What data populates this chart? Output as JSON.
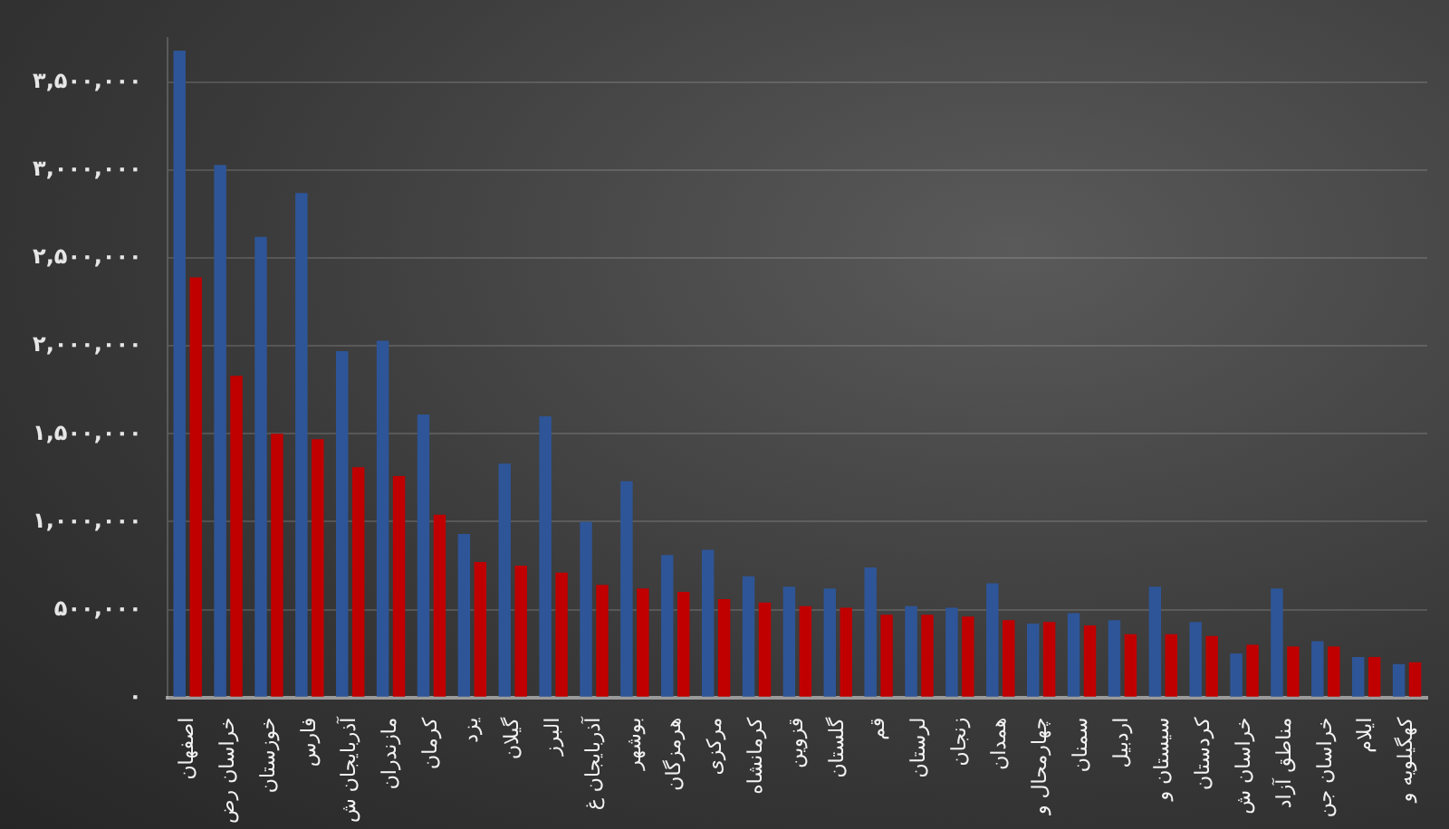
{
  "chart_data": {
    "type": "bar",
    "categories": [
      "اصفهان",
      "خراسان رض",
      "خوزستان",
      "فارس",
      "آذربایجان ش",
      "مازندران",
      "کرمان",
      "یزد",
      "گیلان",
      "البرز",
      "آذربایجان غ",
      "بوشهر",
      "هرمزگان",
      "مرکزی",
      "کرمانشاه",
      "قزوین",
      "گلستان",
      "قم",
      "لرستان",
      "زنجان",
      "همدان",
      "چهارمحال و",
      "سمنان",
      "اردبیل",
      "سیستان و",
      "کردستان",
      "خراسان ش",
      "مناطق آزاد",
      "خراسان جن",
      "ایلام",
      "کهگیلویه و"
    ],
    "series": [
      {
        "color": "#2e5597",
        "values": [
          3680000,
          3030000,
          2620000,
          2870000,
          1970000,
          2030000,
          1610000,
          930000,
          1330000,
          1600000,
          1000000,
          1230000,
          810000,
          840000,
          690000,
          630000,
          620000,
          740000,
          520000,
          510000,
          650000,
          420000,
          480000,
          440000,
          630000,
          430000,
          250000,
          620000,
          320000,
          230000,
          190000
        ]
      },
      {
        "color": "#c00000",
        "values": [
          2390000,
          1830000,
          1500000,
          1470000,
          1310000,
          1260000,
          1040000,
          770000,
          750000,
          710000,
          640000,
          620000,
          600000,
          560000,
          540000,
          520000,
          510000,
          470000,
          470000,
          460000,
          440000,
          430000,
          410000,
          360000,
          360000,
          350000,
          300000,
          290000,
          290000,
          230000,
          200000
        ]
      }
    ],
    "ylim": [
      0,
      3750000
    ],
    "yticks": [
      {
        "value": 0,
        "label": "۰"
      },
      {
        "value": 500000,
        "label": "۵۰۰,۰۰۰"
      },
      {
        "value": 1000000,
        "label": "۱,۰۰۰,۰۰۰"
      },
      {
        "value": 1500000,
        "label": "۱,۵۰۰,۰۰۰"
      },
      {
        "value": 2000000,
        "label": "۲,۰۰۰,۰۰۰"
      },
      {
        "value": 2500000,
        "label": "۲,۵۰۰,۰۰۰"
      },
      {
        "value": 3000000,
        "label": "۳,۰۰۰,۰۰۰"
      },
      {
        "value": 3500000,
        "label": "۳,۵۰۰,۰۰۰"
      }
    ],
    "grid": "y",
    "legend": false
  }
}
